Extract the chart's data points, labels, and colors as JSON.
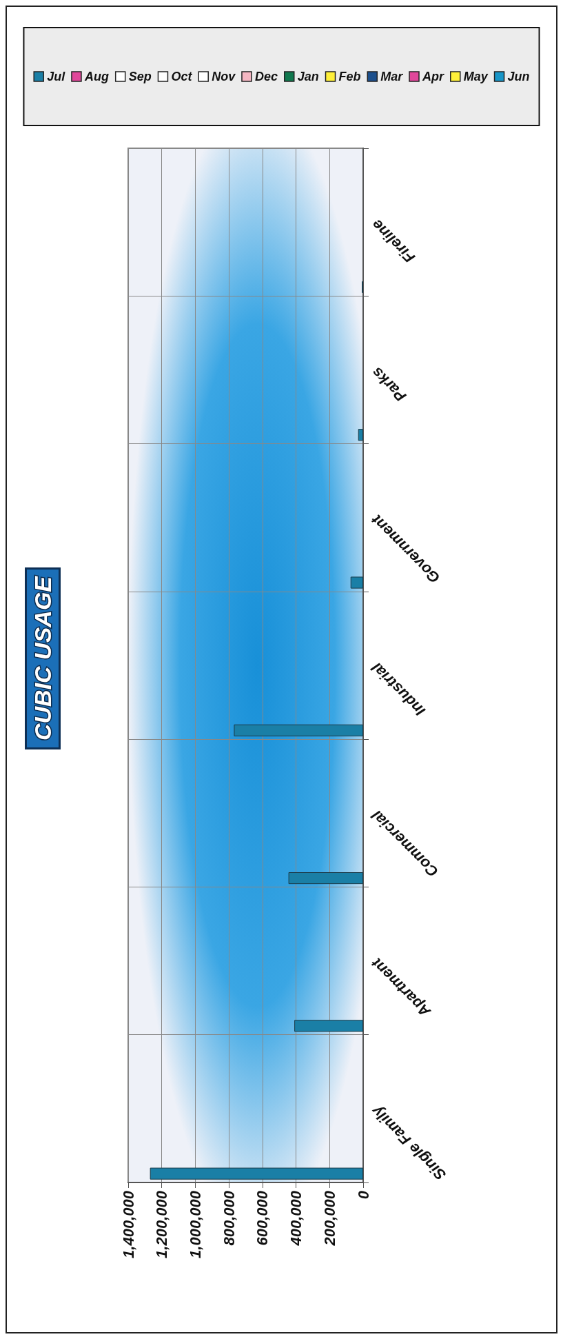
{
  "chart_data": {
    "type": "bar",
    "title": "CUBIC USAGE",
    "orientation": "horizontal",
    "categories": [
      "Fireline",
      "Parks",
      "Government",
      "Industrial",
      "Commercial",
      "Apartment",
      "Single Family"
    ],
    "xlim": [
      1400000,
      0
    ],
    "xticks": [
      0,
      {
        "value": 200000,
        "label": "200,000"
      },
      {
        "value": 400000,
        "label": "400,000"
      },
      {
        "value": 600000,
        "label": "600,000"
      },
      {
        "value": 800000,
        "label": "800,000"
      },
      {
        "value": 1000000,
        "label": "1,000,000"
      },
      {
        "value": 1200000,
        "label": "1,200,000"
      },
      {
        "value": 1400000,
        "label": "1,400,000"
      }
    ],
    "grid": true,
    "legend": "top",
    "series": [
      {
        "name": "Jul",
        "color": "#1a7fa6",
        "values": [
          8000,
          30000,
          75000,
          770000,
          445000,
          410000,
          1270000
        ]
      },
      {
        "name": "Aug",
        "color": "#e0479a",
        "values": [
          null,
          null,
          null,
          null,
          null,
          null,
          null
        ]
      },
      {
        "name": "Sep",
        "color": "#ffffff",
        "values": [
          null,
          null,
          null,
          null,
          null,
          null,
          null
        ]
      },
      {
        "name": "Oct",
        "color": "#ffffff",
        "values": [
          null,
          null,
          null,
          null,
          null,
          null,
          null
        ]
      },
      {
        "name": "Nov",
        "color": "#ffffff",
        "values": [
          null,
          null,
          null,
          null,
          null,
          null,
          null
        ]
      },
      {
        "name": "Dec",
        "color": "#f4b6c2",
        "values": [
          null,
          null,
          null,
          null,
          null,
          null,
          null
        ]
      },
      {
        "name": "Jan",
        "color": "#10784e",
        "values": [
          null,
          null,
          null,
          null,
          null,
          null,
          null
        ]
      },
      {
        "name": "Feb",
        "color": "#fff03a",
        "values": [
          null,
          null,
          null,
          null,
          null,
          null,
          null
        ]
      },
      {
        "name": "Mar",
        "color": "#1c4f8c",
        "values": [
          null,
          null,
          null,
          null,
          null,
          null,
          null
        ]
      },
      {
        "name": "Apr",
        "color": "#e0479a",
        "values": [
          null,
          null,
          null,
          null,
          null,
          null,
          null
        ]
      },
      {
        "name": "May",
        "color": "#fff03a",
        "values": [
          null,
          null,
          null,
          null,
          null,
          null,
          null
        ]
      },
      {
        "name": "Jun",
        "color": "#1896c8",
        "values": [
          null,
          null,
          null,
          null,
          null,
          null,
          null
        ]
      }
    ]
  }
}
